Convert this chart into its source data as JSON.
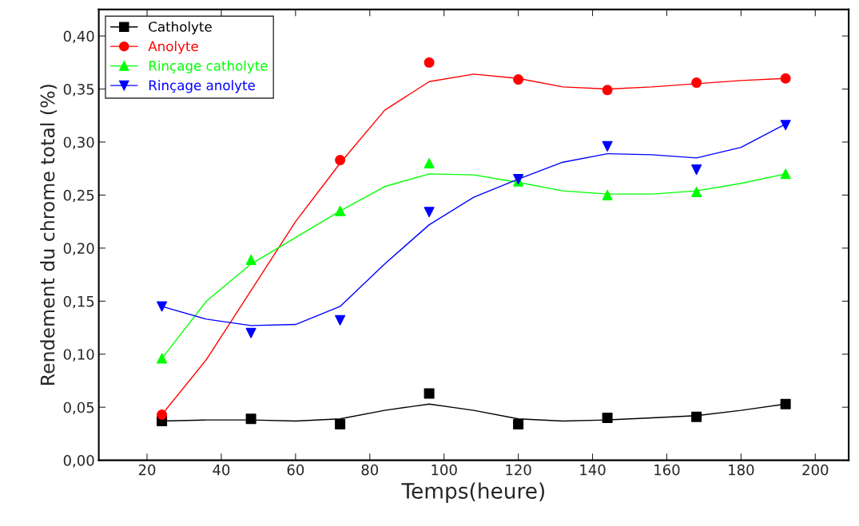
{
  "chart_data": {
    "type": "scatter",
    "xlabel": "Temps(heure)",
    "ylabel": "Rendement du chrome total (%)",
    "x": [
      24,
      48,
      72,
      96,
      120,
      144,
      168,
      192
    ],
    "series": [
      {
        "name": "Catholyte",
        "color": "#000000",
        "marker": "square",
        "values": [
          0.037,
          0.039,
          0.034,
          0.063,
          0.034,
          0.04,
          0.041,
          0.053
        ]
      },
      {
        "name": "Anolyte",
        "color": "#ff0000",
        "marker": "circle",
        "values": [
          0.043,
          null,
          0.283,
          0.375,
          0.359,
          0.349,
          0.356,
          0.36
        ]
      },
      {
        "name": "Rinçage catholyte",
        "color": "#00ff00",
        "marker": "triangle",
        "values": [
          0.096,
          0.189,
          0.235,
          0.28,
          0.263,
          0.25,
          0.253,
          0.27
        ]
      },
      {
        "name": "Rinçage anolyte",
        "color": "#0000ff",
        "marker": "triangle_down",
        "values": [
          0.145,
          0.12,
          0.132,
          0.234,
          0.265,
          0.296,
          0.274,
          0.316
        ]
      },
      {
        "type": "line",
        "color": "#000000",
        "x": [
          24,
          36,
          48,
          60,
          72,
          84,
          96,
          108,
          120,
          132,
          144,
          156,
          168,
          180,
          192
        ],
        "values": [
          0.037,
          0.038,
          0.038,
          0.037,
          0.039,
          0.047,
          0.053,
          0.047,
          0.039,
          0.037,
          0.038,
          0.04,
          0.042,
          0.047,
          0.053
        ]
      },
      {
        "type": "line",
        "color": "#ff0000",
        "x": [
          24,
          36,
          48,
          60,
          72,
          84,
          96,
          108,
          120,
          132,
          144,
          156,
          168,
          180,
          192
        ],
        "values": [
          0.043,
          0.095,
          0.16,
          0.225,
          0.28,
          0.33,
          0.357,
          0.364,
          0.36,
          0.352,
          0.35,
          0.352,
          0.355,
          0.358,
          0.36
        ]
      },
      {
        "type": "line",
        "color": "#00ff00",
        "x": [
          24,
          36,
          48,
          60,
          72,
          84,
          96,
          108,
          120,
          132,
          144,
          156,
          168,
          180,
          192
        ],
        "values": [
          0.096,
          0.15,
          0.185,
          0.21,
          0.235,
          0.258,
          0.27,
          0.269,
          0.262,
          0.254,
          0.251,
          0.251,
          0.254,
          0.261,
          0.27
        ]
      },
      {
        "type": "line",
        "color": "#0000ff",
        "x": [
          24,
          36,
          48,
          60,
          72,
          84,
          96,
          108,
          120,
          132,
          144,
          156,
          168,
          180,
          192
        ],
        "values": [
          0.145,
          0.133,
          0.127,
          0.128,
          0.145,
          0.185,
          0.222,
          0.248,
          0.265,
          0.281,
          0.289,
          0.288,
          0.285,
          0.295,
          0.317
        ]
      }
    ],
    "xlim": [
      7,
      209
    ],
    "xticks": [
      20,
      40,
      60,
      80,
      100,
      120,
      140,
      160,
      180,
      200
    ],
    "ylim": [
      0,
      0.425
    ],
    "yticks": [
      {
        "value": 0,
        "label": "0,00"
      },
      {
        "value": 0.05,
        "label": "0,05"
      },
      {
        "value": 0.1,
        "label": "0,10"
      },
      {
        "value": 0.15,
        "label": "0,15"
      },
      {
        "value": 0.2,
        "label": "0,20"
      },
      {
        "value": 0.25,
        "label": "0,25"
      },
      {
        "value": 0.3,
        "label": "0,30"
      },
      {
        "value": 0.35,
        "label": "0,35"
      },
      {
        "value": 0.4,
        "label": "0,40"
      }
    ],
    "legend": "top left",
    "grid": false,
    "line_style": "solid"
  }
}
